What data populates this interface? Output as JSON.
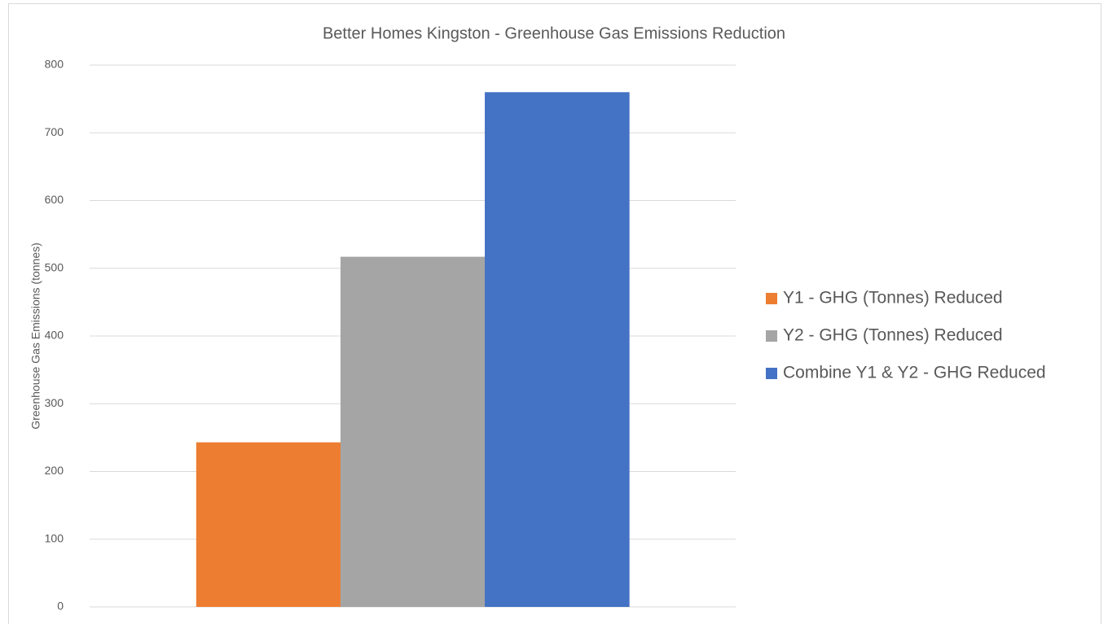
{
  "chart_data": {
    "type": "bar",
    "title": "Better Homes Kingston - Greenhouse Gas Emissions Reduction",
    "y_label": "Greenhouse Gas Emissions (tonnes)",
    "categories": [
      null
    ],
    "series": [
      {
        "name": "Y1 - GHG (Tonnes) Reduced",
        "color": "#ed7d31",
        "values": [
          243
        ]
      },
      {
        "name": "Y2 - GHG (Tonnes) Reduced",
        "color": "#a5a5a5",
        "values": [
          517
        ]
      },
      {
        "name": "Combine Y1 & Y2 - GHG  Reduced",
        "color": "#4472c4",
        "values": [
          760
        ]
      }
    ],
    "ylim": [
      0,
      800
    ],
    "yticks": [
      0,
      100,
      200,
      300,
      400,
      500,
      600,
      700,
      800
    ],
    "grid": true,
    "legend": "right"
  }
}
